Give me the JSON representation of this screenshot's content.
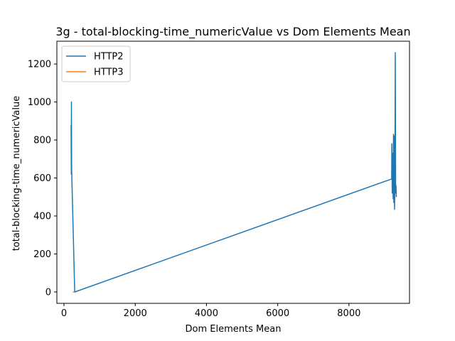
{
  "chart_data": {
    "type": "line",
    "title": "3g - total-blocking-time_numericValue vs Dom Elements Mean",
    "xlabel": "Dom Elements Mean",
    "ylabel": "total-blocking-time_numericValue",
    "xlim": [
      -200,
      9700
    ],
    "ylim": [
      -60,
      1320
    ],
    "xticks": [
      0,
      2000,
      4000,
      6000,
      8000
    ],
    "yticks": [
      0,
      200,
      400,
      600,
      800,
      1000,
      1200
    ],
    "legend_position": "upper-left",
    "grid": false,
    "series": [
      {
        "name": "HTTP2",
        "color": "#1f77b4",
        "points": [
          [
            200,
            880
          ],
          [
            205,
            620
          ],
          [
            210,
            1000
          ],
          [
            215,
            640
          ],
          [
            300,
            0
          ],
          [
            9200,
            595
          ],
          [
            9205,
            780
          ],
          [
            9215,
            520
          ],
          [
            9230,
            730
          ],
          [
            9240,
            490
          ],
          [
            9250,
            830
          ],
          [
            9260,
            470
          ],
          [
            9270,
            820
          ],
          [
            9280,
            435
          ],
          [
            9290,
            600
          ],
          [
            9300,
            1260
          ],
          [
            9310,
            520
          ],
          [
            9320,
            560
          ],
          [
            9330,
            500
          ]
        ]
      },
      {
        "name": "HTTP3",
        "color": "#ff7f0e",
        "points": [
          [
            250,
            0
          ],
          [
            290,
            0
          ]
        ]
      }
    ]
  }
}
